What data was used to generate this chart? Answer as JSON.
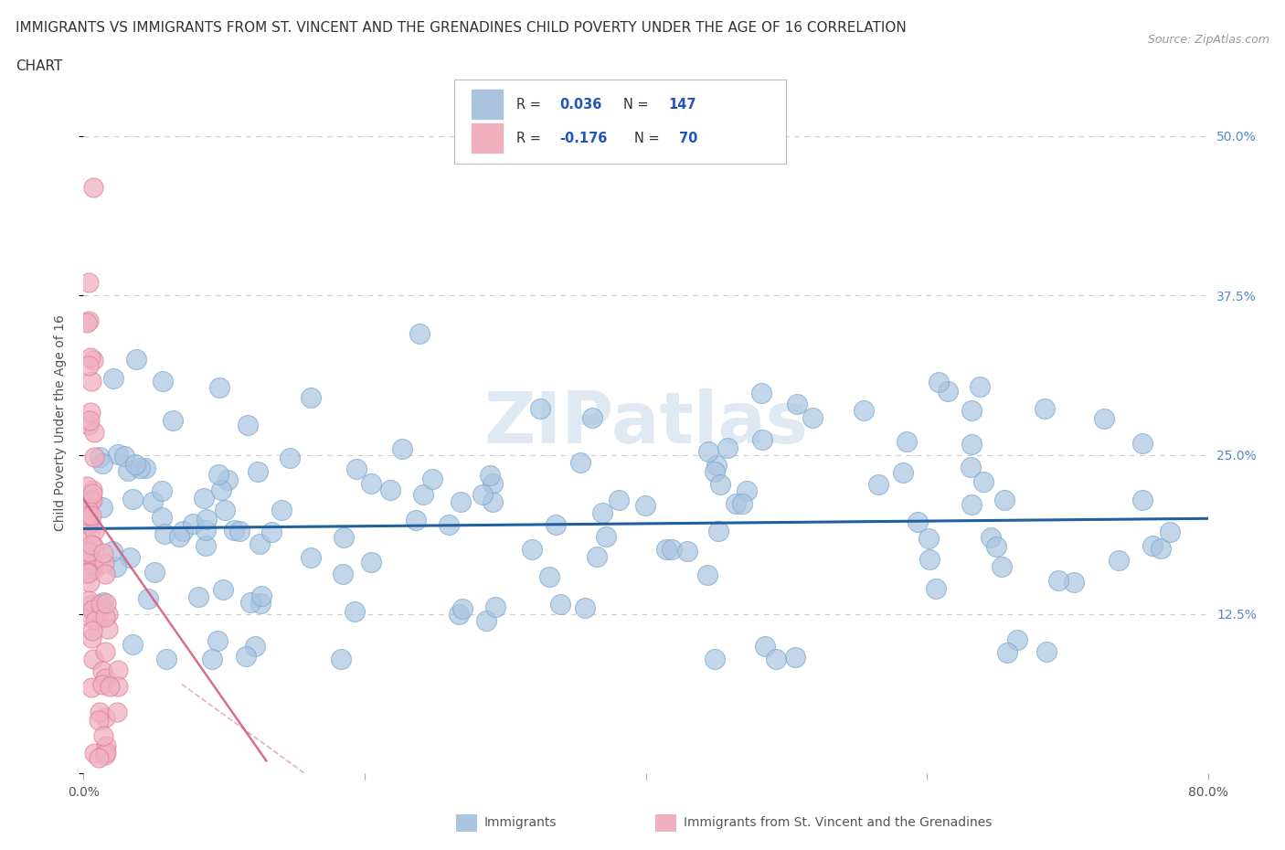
{
  "title_line1": "IMMIGRANTS VS IMMIGRANTS FROM ST. VINCENT AND THE GRENADINES CHILD POVERTY UNDER THE AGE OF 16 CORRELATION",
  "title_line2": "CHART",
  "source": "Source: ZipAtlas.com",
  "ylabel": "Child Poverty Under the Age of 16",
  "xlim": [
    0.0,
    0.8
  ],
  "ylim": [
    0.0,
    0.55
  ],
  "blue_R": 0.036,
  "blue_N": 147,
  "pink_R": -0.176,
  "pink_N": 70,
  "blue_color": "#aac4e0",
  "blue_edge_color": "#7aaad0",
  "blue_line_color": "#2060a0",
  "pink_color": "#f0b0c0",
  "pink_edge_color": "#e080a0",
  "pink_line_color": "#d06080",
  "watermark_color": "#c5d8ea",
  "grid_color": "#cccccc",
  "right_tick_color": "#5588cc",
  "title_color": "#333333",
  "source_color": "#999999",
  "ylabel_color": "#555555"
}
